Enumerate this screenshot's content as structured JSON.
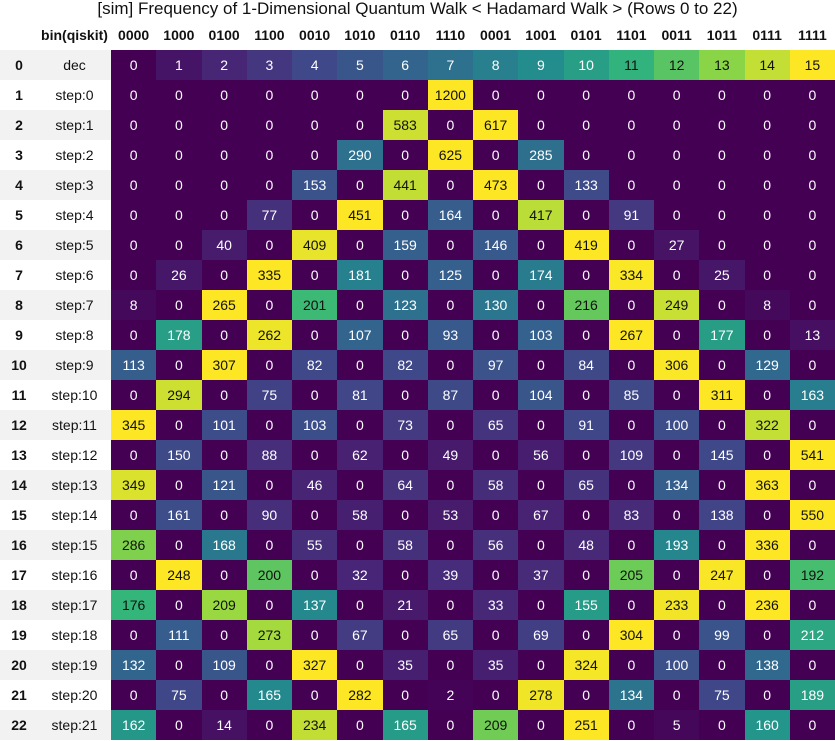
{
  "title": "[sim] Frequency of 1-Dimensional Quantum Walk < Hadamard Walk > (Rows 0 to 22)",
  "colors": {
    "viridis_low": "#440154",
    "viridis_high": "#fde725",
    "stripe": "#f2f2f2"
  },
  "chart_data": {
    "type": "heatmap",
    "title": "[sim] Frequency of 1-Dimensional Quantum Walk < Hadamard Walk > (Rows 0 to 22)",
    "index_header": "",
    "label_header": "bin(qiskit)",
    "columns": [
      "0000",
      "1000",
      "0100",
      "1100",
      "0010",
      "1010",
      "0110",
      "1110",
      "0001",
      "1001",
      "0101",
      "1101",
      "0011",
      "1011",
      "0111",
      "1111"
    ],
    "row_index": [
      0,
      1,
      2,
      3,
      4,
      5,
      6,
      7,
      8,
      9,
      10,
      11,
      12,
      13,
      14,
      15,
      16,
      17,
      18,
      19,
      20,
      21,
      22
    ],
    "row_labels": [
      "dec",
      "step:0",
      "step:1",
      "step:2",
      "step:3",
      "step:4",
      "step:5",
      "step:6",
      "step:7",
      "step:8",
      "step:9",
      "step:10",
      "step:11",
      "step:12",
      "step:13",
      "step:14",
      "step:15",
      "step:16",
      "step:17",
      "step:18",
      "step:19",
      "step:20",
      "step:21"
    ],
    "values": [
      [
        0,
        1,
        2,
        3,
        4,
        5,
        6,
        7,
        8,
        9,
        10,
        11,
        12,
        13,
        14,
        15
      ],
      [
        0,
        0,
        0,
        0,
        0,
        0,
        0,
        1200,
        0,
        0,
        0,
        0,
        0,
        0,
        0,
        0
      ],
      [
        0,
        0,
        0,
        0,
        0,
        0,
        583,
        0,
        617,
        0,
        0,
        0,
        0,
        0,
        0,
        0
      ],
      [
        0,
        0,
        0,
        0,
        0,
        290,
        0,
        625,
        0,
        285,
        0,
        0,
        0,
        0,
        0,
        0
      ],
      [
        0,
        0,
        0,
        0,
        153,
        0,
        441,
        0,
        473,
        0,
        133,
        0,
        0,
        0,
        0,
        0
      ],
      [
        0,
        0,
        0,
        77,
        0,
        451,
        0,
        164,
        0,
        417,
        0,
        91,
        0,
        0,
        0,
        0
      ],
      [
        0,
        0,
        40,
        0,
        409,
        0,
        159,
        0,
        146,
        0,
        419,
        0,
        27,
        0,
        0,
        0
      ],
      [
        0,
        26,
        0,
        335,
        0,
        181,
        0,
        125,
        0,
        174,
        0,
        334,
        0,
        25,
        0,
        0
      ],
      [
        8,
        0,
        265,
        0,
        201,
        0,
        123,
        0,
        130,
        0,
        216,
        0,
        249,
        0,
        8,
        0
      ],
      [
        0,
        178,
        0,
        262,
        0,
        107,
        0,
        93,
        0,
        103,
        0,
        267,
        0,
        177,
        0,
        13
      ],
      [
        113,
        0,
        307,
        0,
        82,
        0,
        82,
        0,
        97,
        0,
        84,
        0,
        306,
        0,
        129,
        0
      ],
      [
        0,
        294,
        0,
        75,
        0,
        81,
        0,
        87,
        0,
        104,
        0,
        85,
        0,
        311,
        0,
        163
      ],
      [
        345,
        0,
        101,
        0,
        103,
        0,
        73,
        0,
        65,
        0,
        91,
        0,
        100,
        0,
        322,
        0
      ],
      [
        0,
        150,
        0,
        88,
        0,
        62,
        0,
        49,
        0,
        56,
        0,
        109,
        0,
        145,
        0,
        541
      ],
      [
        349,
        0,
        121,
        0,
        46,
        0,
        64,
        0,
        58,
        0,
        65,
        0,
        134,
        0,
        363,
        0
      ],
      [
        0,
        161,
        0,
        90,
        0,
        58,
        0,
        53,
        0,
        67,
        0,
        83,
        0,
        138,
        0,
        550
      ],
      [
        286,
        0,
        168,
        0,
        55,
        0,
        58,
        0,
        56,
        0,
        48,
        0,
        193,
        0,
        336,
        0
      ],
      [
        0,
        248,
        0,
        200,
        0,
        32,
        0,
        39,
        0,
        37,
        0,
        205,
        0,
        247,
        0,
        192
      ],
      [
        176,
        0,
        209,
        0,
        137,
        0,
        21,
        0,
        33,
        0,
        155,
        0,
        233,
        0,
        236,
        0
      ],
      [
        0,
        111,
        0,
        273,
        0,
        67,
        0,
        65,
        0,
        69,
        0,
        304,
        0,
        99,
        0,
        212
      ],
      [
        132,
        0,
        109,
        0,
        327,
        0,
        35,
        0,
        35,
        0,
        324,
        0,
        100,
        0,
        138,
        0
      ],
      [
        0,
        75,
        0,
        165,
        0,
        282,
        0,
        2,
        0,
        278,
        0,
        134,
        0,
        75,
        0,
        189
      ],
      [
        162,
        0,
        14,
        0,
        234,
        0,
        165,
        0,
        209,
        0,
        251,
        0,
        5,
        0,
        160,
        0
      ]
    ],
    "colormap": "viridis",
    "normalization": "per-row",
    "grid": false
  }
}
